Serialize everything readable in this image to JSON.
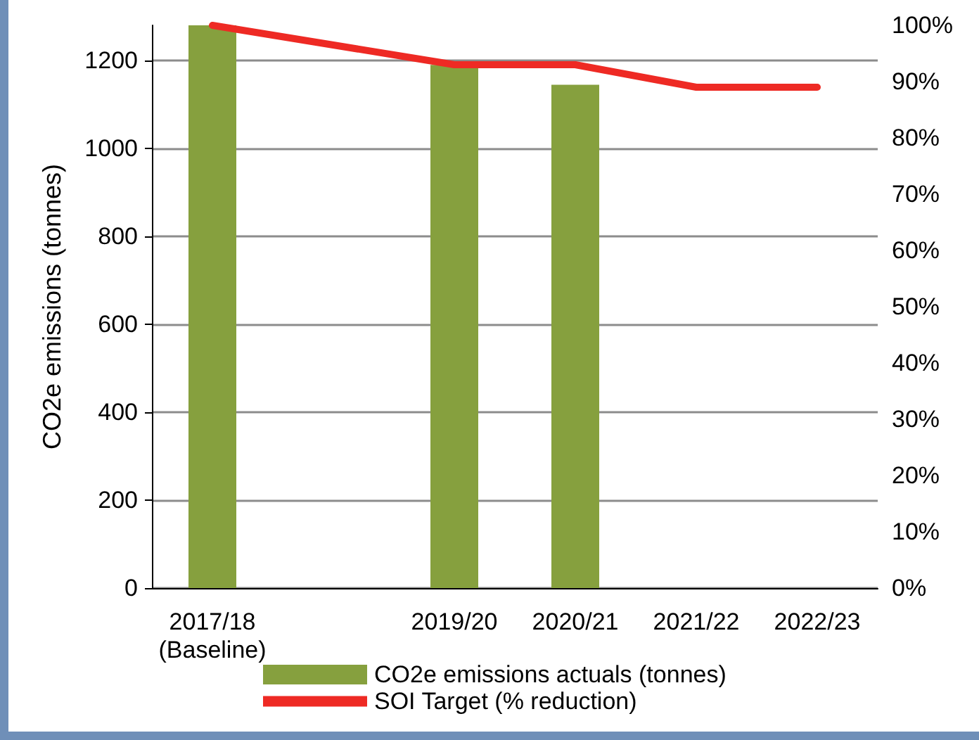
{
  "chart_data": {
    "type": "bar",
    "categories": [
      "2017/18\n(Baseline)",
      null,
      "2019/20",
      "2020/21",
      "2021/22",
      "2022/23"
    ],
    "series": [
      {
        "name": "CO2e emissions actuals (tonnes)",
        "color": "#86a03e",
        "values": [
          1280,
          null,
          1190,
          1145,
          null,
          null
        ]
      },
      {
        "name": "SOI Target (% reduction)",
        "type": "line",
        "axis": "y2",
        "color": "#ee2a24",
        "values": [
          100,
          96.5,
          93,
          93,
          89,
          89
        ]
      }
    ],
    "ylabel": "CO2e emissions (tonnes)",
    "ylim": [
      0,
      1280
    ],
    "yticks": [
      0,
      200,
      400,
      600,
      800,
      1000,
      1200
    ],
    "y2lim": [
      0,
      100
    ],
    "y2ticks": [
      {
        "value": 0,
        "label": "0%"
      },
      {
        "value": 10,
        "label": "10%"
      },
      {
        "value": 20,
        "label": "20%"
      },
      {
        "value": 30,
        "label": "30%"
      },
      {
        "value": 40,
        "label": "40%"
      },
      {
        "value": 50,
        "label": "50%"
      },
      {
        "value": 60,
        "label": "60%"
      },
      {
        "value": 70,
        "label": "70%"
      },
      {
        "value": 80,
        "label": "80%"
      },
      {
        "value": 90,
        "label": "90%"
      },
      {
        "value": 100,
        "label": "100%"
      }
    ],
    "grid": "y",
    "legend": "bottom",
    "marker": "none",
    "line_style": "solid"
  }
}
